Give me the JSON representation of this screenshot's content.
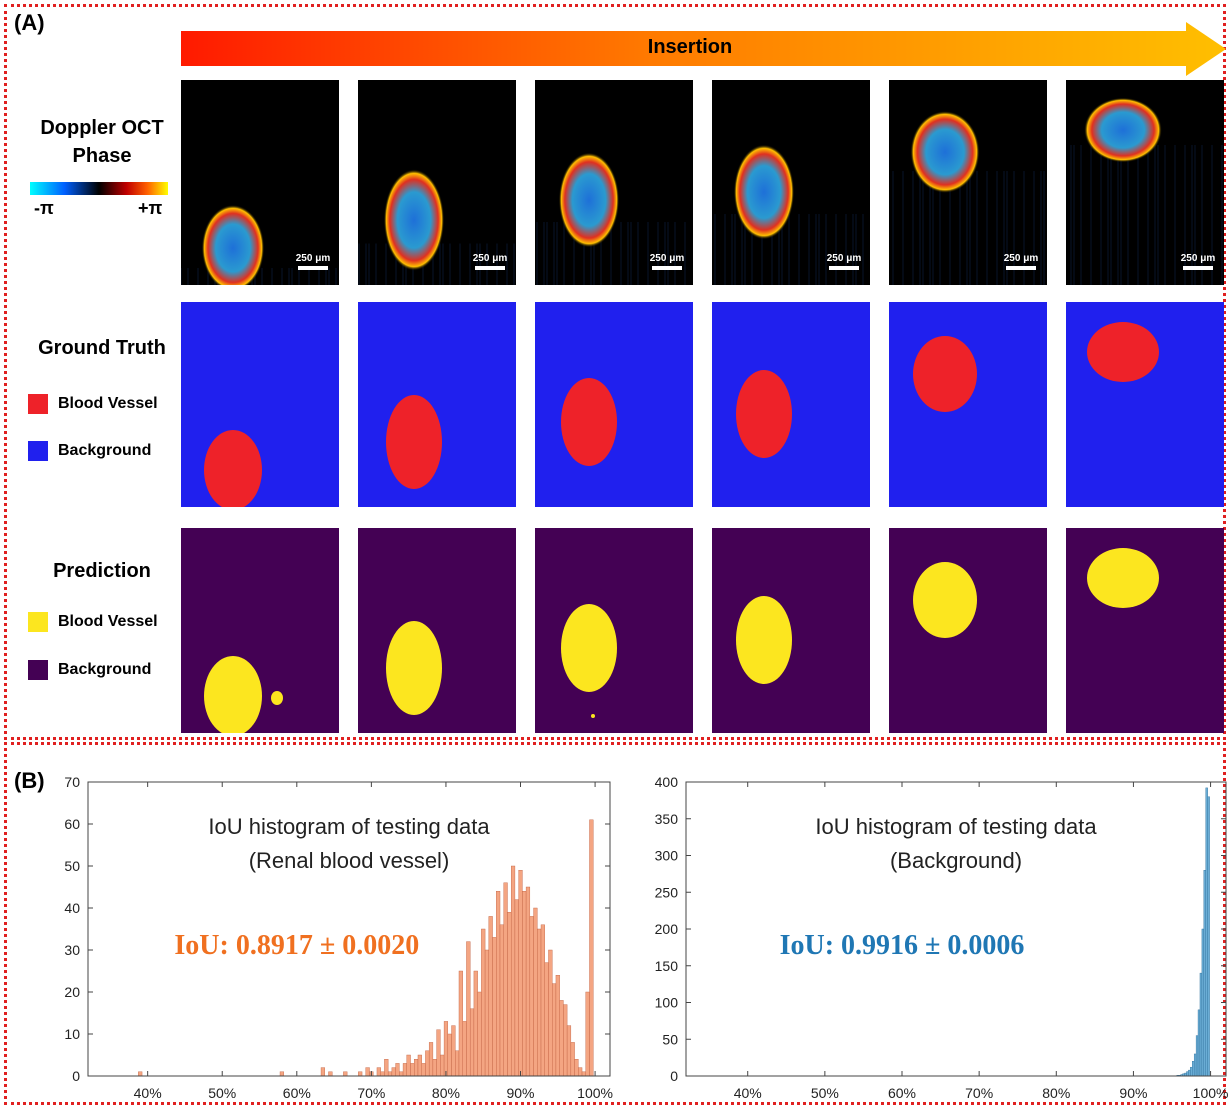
{
  "figure": {
    "panel_a_label": "(A)",
    "panel_b_label": "(B)",
    "arrow_label": "Insertion",
    "rows": {
      "doppler": {
        "title_line1": "Doppler OCT",
        "title_line2": "Phase",
        "colorbar_min": "-π",
        "colorbar_max": "+π",
        "scale_bar": "250 μm"
      },
      "ground_truth": {
        "title": "Ground Truth",
        "legend_vessel": "Blood Vessel",
        "legend_background": "Background",
        "vessel_color": "#ee2229",
        "background_color": "#2020ee"
      },
      "prediction": {
        "title": "Prediction",
        "legend_vessel": "Blood Vessel",
        "legend_background": "Background",
        "vessel_color": "#fce61f",
        "background_color": "#440154"
      }
    }
  },
  "chart_data": [
    {
      "type": "bar",
      "title": "IoU histogram of testing data",
      "subtitle": "(Renal blood vessel)",
      "annotation": "IoU: 0.8917 ± 0.0020",
      "annotation_color": "#f07020",
      "bar_color": "#f4a582",
      "bar_edge": "#c06040",
      "ylim": [
        0,
        70
      ],
      "yticks": [
        0,
        10,
        20,
        30,
        40,
        50,
        60,
        70
      ],
      "xlim": [
        0.32,
        1.02
      ],
      "xticks": [
        "40%",
        "50%",
        "60%",
        "70%",
        "80%",
        "90%",
        "100%"
      ],
      "xtick_values": [
        0.4,
        0.5,
        0.6,
        0.7,
        0.8,
        0.9,
        1.0
      ],
      "bin_width": 0.005,
      "x": [
        0.39,
        0.58,
        0.635,
        0.645,
        0.665,
        0.685,
        0.695,
        0.7,
        0.71,
        0.715,
        0.72,
        0.725,
        0.73,
        0.735,
        0.74,
        0.745,
        0.75,
        0.755,
        0.76,
        0.765,
        0.77,
        0.775,
        0.78,
        0.785,
        0.79,
        0.795,
        0.8,
        0.805,
        0.81,
        0.815,
        0.82,
        0.825,
        0.83,
        0.835,
        0.84,
        0.845,
        0.85,
        0.855,
        0.86,
        0.865,
        0.87,
        0.875,
        0.88,
        0.885,
        0.89,
        0.895,
        0.9,
        0.905,
        0.91,
        0.915,
        0.92,
        0.925,
        0.93,
        0.935,
        0.94,
        0.945,
        0.95,
        0.955,
        0.96,
        0.965,
        0.97,
        0.975,
        0.98,
        0.985,
        0.99,
        0.995
      ],
      "values": [
        1,
        1,
        2,
        1,
        1,
        1,
        2,
        1,
        2,
        1,
        4,
        1,
        2,
        3,
        1,
        3,
        5,
        3,
        4,
        5,
        3,
        6,
        8,
        4,
        11,
        5,
        13,
        10,
        12,
        6,
        25,
        13,
        32,
        16,
        25,
        20,
        35,
        30,
        38,
        33,
        44,
        36,
        46,
        39,
        50,
        42,
        49,
        44,
        45,
        38,
        40,
        35,
        36,
        27,
        30,
        22,
        24,
        18,
        17,
        12,
        8,
        4,
        2,
        1,
        20,
        61
      ]
    },
    {
      "type": "bar",
      "title": "IoU histogram of testing data",
      "subtitle": "(Background)",
      "annotation": "IoU: 0.9916 ± 0.0006",
      "annotation_color": "#1f77b4",
      "bar_color": "#6baed6",
      "bar_edge": "#2c6e9a",
      "ylim": [
        0,
        400
      ],
      "yticks": [
        0,
        50,
        100,
        150,
        200,
        250,
        300,
        350,
        400
      ],
      "xlim": [
        0.32,
        1.02
      ],
      "xticks": [
        "40%",
        "50%",
        "60%",
        "70%",
        "80%",
        "90%",
        "100%"
      ],
      "xtick_values": [
        0.4,
        0.5,
        0.6,
        0.7,
        0.8,
        0.9,
        1.0
      ],
      "bin_width": 0.0025,
      "x": [
        0.9575,
        0.96,
        0.9625,
        0.965,
        0.9675,
        0.97,
        0.9725,
        0.975,
        0.9775,
        0.98,
        0.9825,
        0.985,
        0.9875,
        0.99,
        0.9925,
        0.995,
        0.9975
      ],
      "values": [
        1,
        1,
        2,
        3,
        4,
        6,
        8,
        12,
        20,
        30,
        55,
        90,
        140,
        200,
        280,
        392,
        380
      ]
    }
  ]
}
